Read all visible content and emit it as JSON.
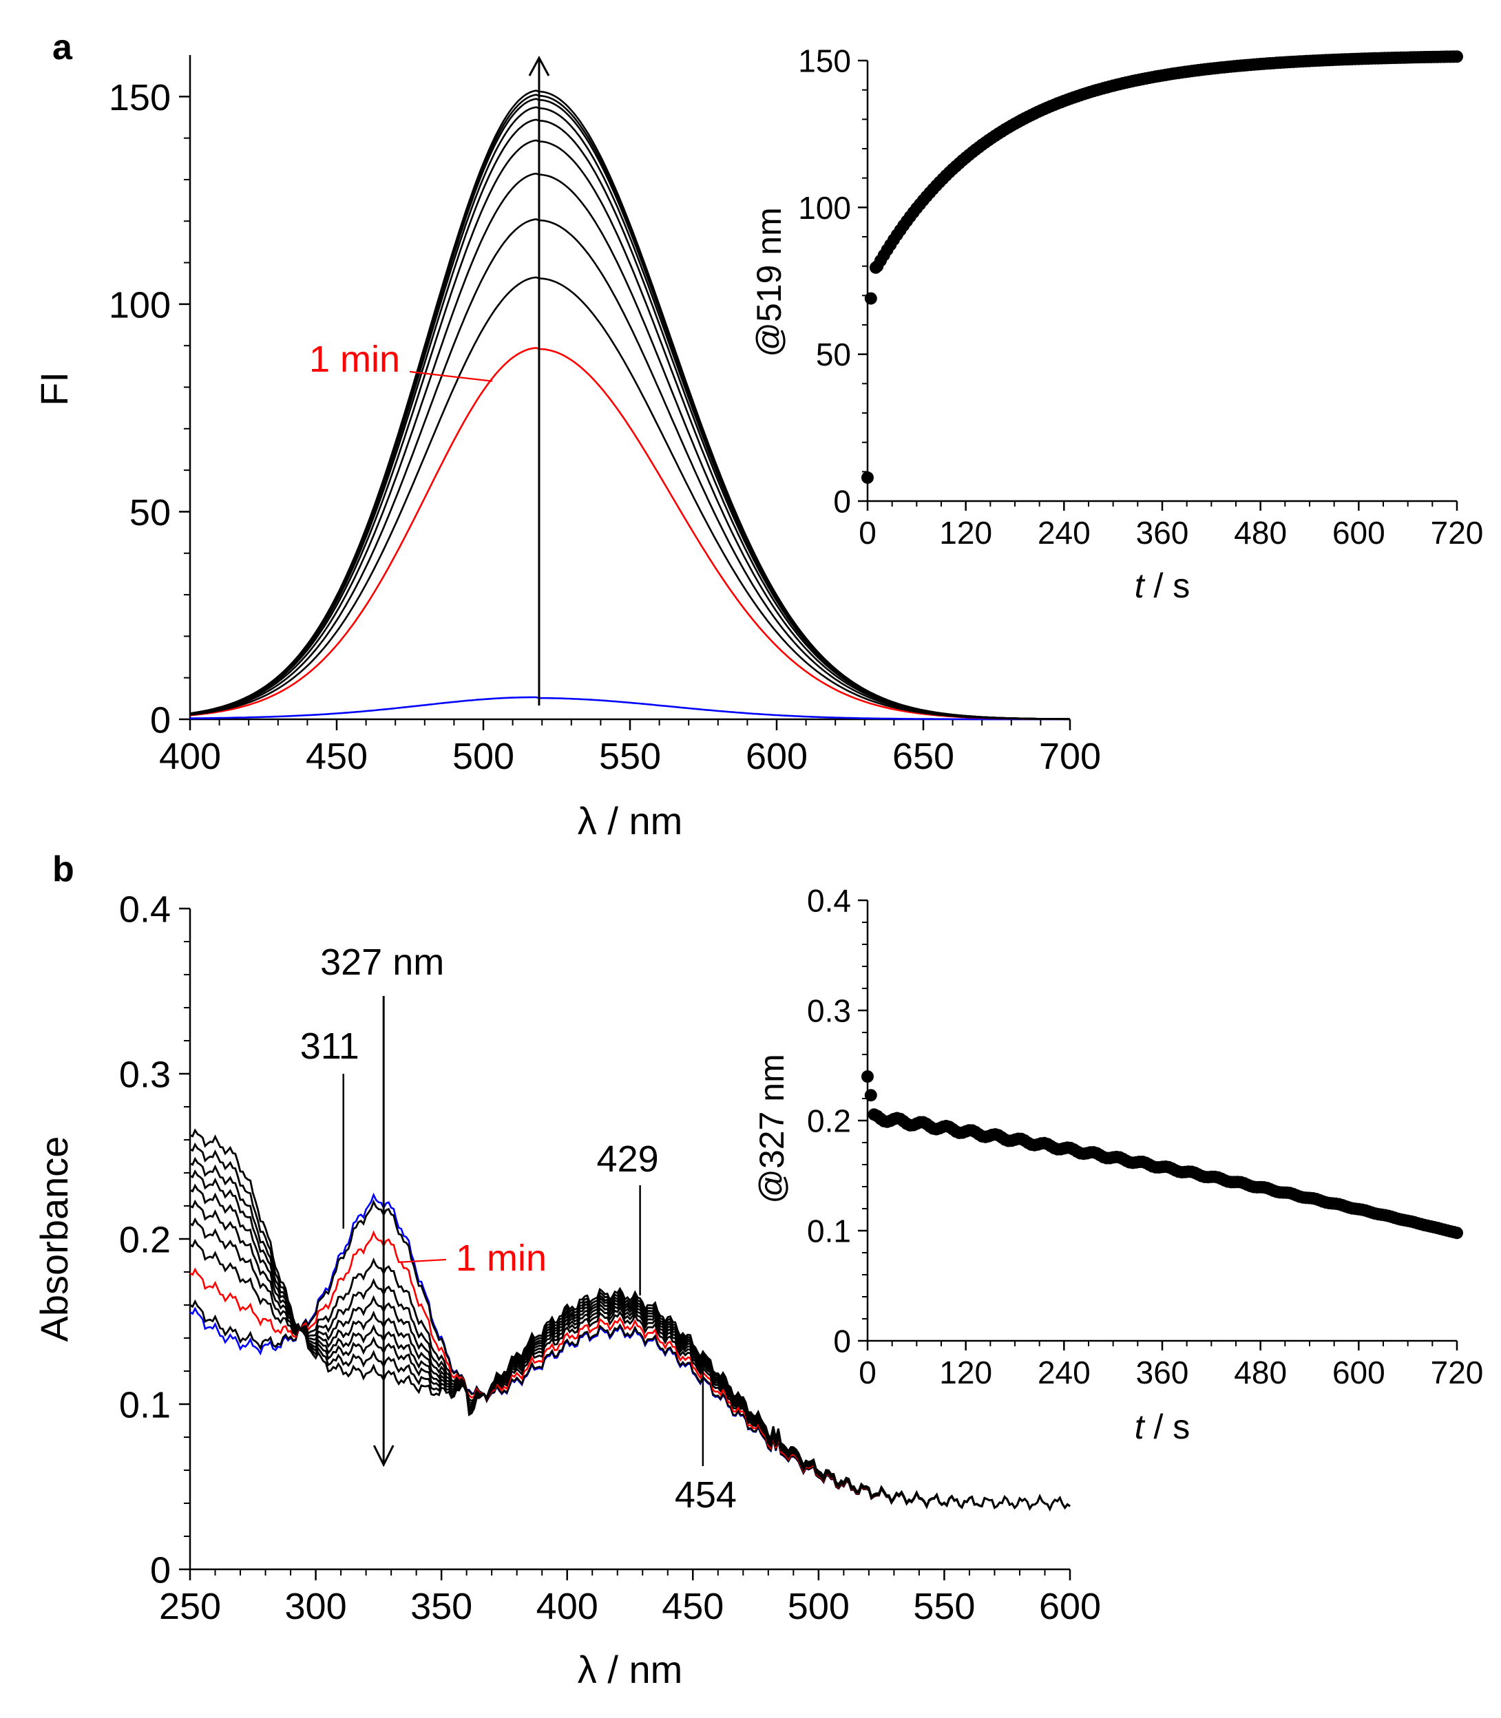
{
  "panel_labels": {
    "a": "a",
    "b": "b"
  },
  "colors": {
    "black": "#000000",
    "red": "#ff0000",
    "blue": "#0000ff"
  },
  "chart_data": [
    {
      "id": "a-main",
      "type": "line",
      "xlabel": "λ / nm",
      "ylabel": "FI",
      "xlim": [
        400,
        700
      ],
      "ylim": [
        0,
        160
      ],
      "xticks": [
        400,
        450,
        500,
        550,
        600,
        650,
        700
      ],
      "yticks": [
        0,
        50,
        100,
        150
      ],
      "peak_nm": 519,
      "series": [
        {
          "color": "#0000ff",
          "peak": 5
        },
        {
          "color": "#ff0000",
          "peak": 89,
          "label": "1 min"
        },
        {
          "color": "#000000",
          "peak": 106
        },
        {
          "color": "#000000",
          "peak": 120
        },
        {
          "color": "#000000",
          "peak": 131
        },
        {
          "color": "#000000",
          "peak": 139
        },
        {
          "color": "#000000",
          "peak": 144
        },
        {
          "color": "#000000",
          "peak": 147
        },
        {
          "color": "#000000",
          "peak": 149
        },
        {
          "color": "#000000",
          "peak": 150
        },
        {
          "color": "#000000",
          "peak": 151
        }
      ],
      "annotations": {
        "red_label": "1 min"
      }
    },
    {
      "id": "a-inset",
      "type": "scatter",
      "xlabel_italic": "t",
      "xlabel_rest": " / s",
      "ylabel": "@519 nm",
      "xlim": [
        0,
        720
      ],
      "ylim": [
        0,
        150
      ],
      "xticks": [
        0,
        120,
        240,
        360,
        480,
        600,
        720
      ],
      "yticks": [
        0,
        50,
        100,
        150
      ],
      "model": {
        "y0": 8,
        "y_first": 69,
        "plateau": 152,
        "tau": 150
      }
    },
    {
      "id": "b-main",
      "type": "line",
      "xlabel": "λ / nm",
      "ylabel": "Absorbance",
      "xlim": [
        250,
        600
      ],
      "ylim": [
        0,
        0.4
      ],
      "xticks": [
        250,
        300,
        350,
        400,
        450,
        500,
        550,
        600
      ],
      "yticks": [
        0,
        0.1,
        0.2,
        0.3,
        0.4
      ],
      "series_count": 11,
      "annotations": {
        "peak_327": "327 nm",
        "iso_311": "311",
        "peak_429": "429",
        "iso_454": "454",
        "red_label": "1 min"
      }
    },
    {
      "id": "b-inset",
      "type": "scatter",
      "xlabel_italic": "t",
      "xlabel_rest": " / s",
      "ylabel": "@327 nm",
      "xlim": [
        0,
        720
      ],
      "ylim": [
        0,
        0.4
      ],
      "xticks": [
        0,
        120,
        240,
        360,
        480,
        600,
        720
      ],
      "yticks": [
        0,
        0.1,
        0.2,
        0.3,
        0.4
      ],
      "model": {
        "first": [
          0.24,
          0.223
        ],
        "start": 0.203,
        "end": 0.098
      }
    }
  ]
}
